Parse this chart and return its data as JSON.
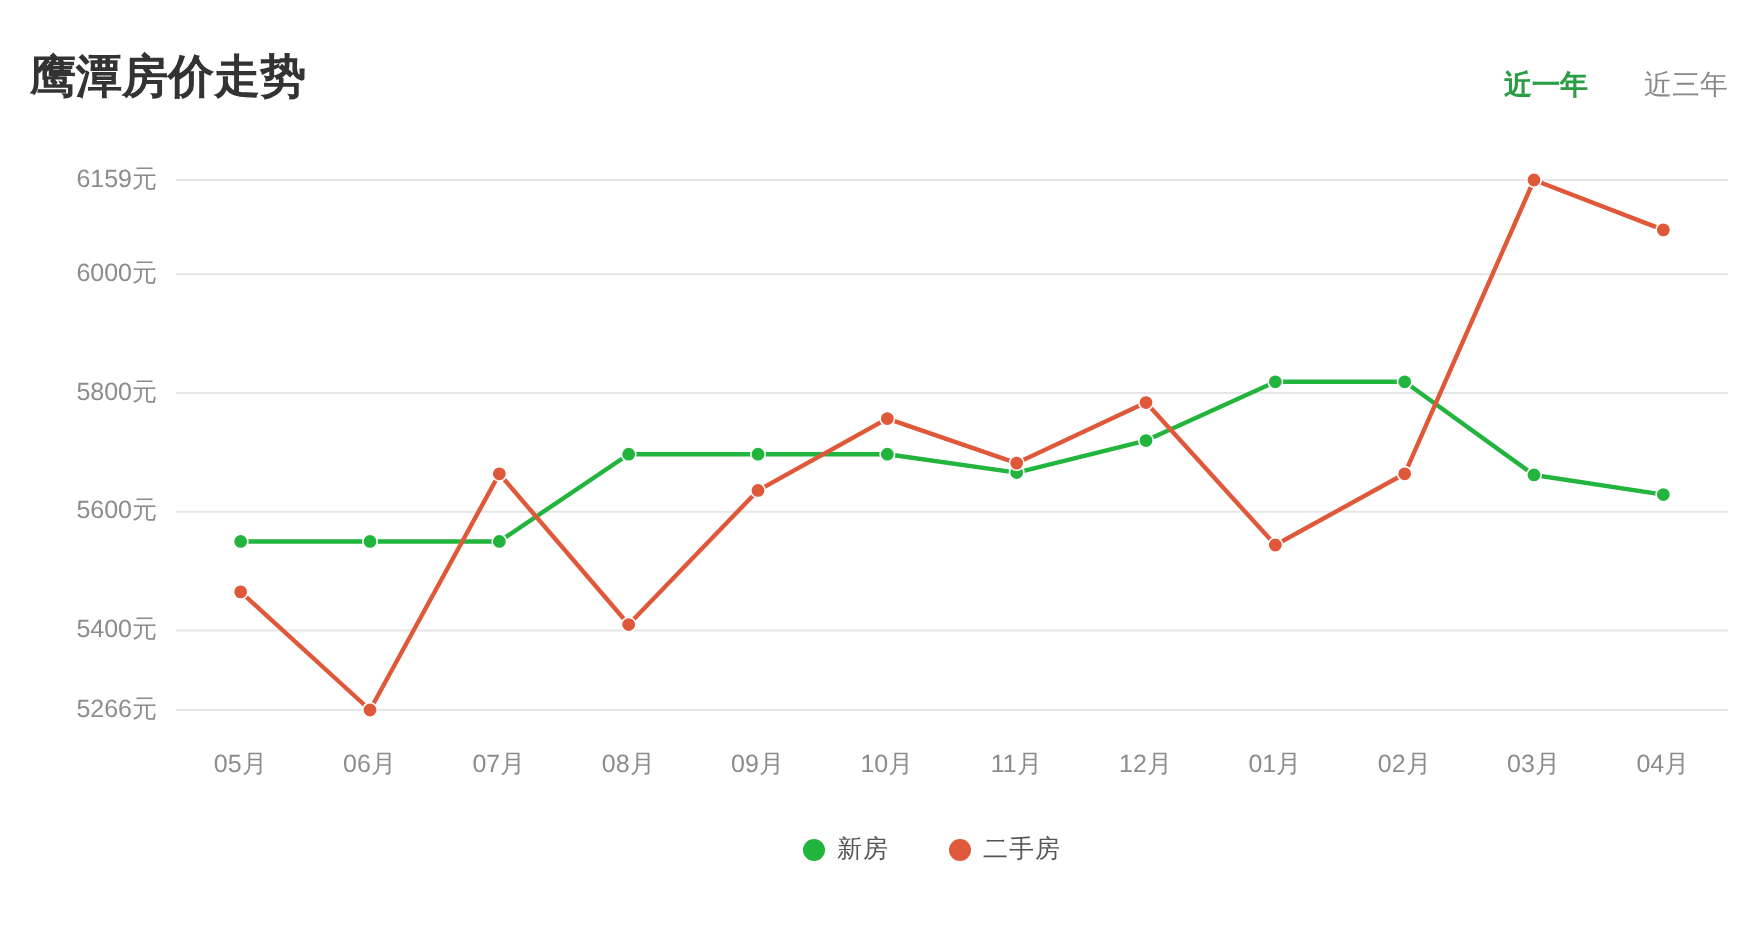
{
  "chart_data": {
    "type": "line",
    "title": "鹰潭房价走势",
    "annotations": [
      "近一年",
      "近三年"
    ],
    "categories": [
      "05月",
      "06月",
      "07月",
      "08月",
      "09月",
      "10月",
      "11月",
      "12月",
      "01月",
      "02月",
      "03月",
      "04月"
    ],
    "series": [
      {
        "name": "新房",
        "color": "#22b53e",
        "values": [
          5550,
          5550,
          5550,
          5697,
          5697,
          5697,
          5666,
          5720,
          5819,
          5819,
          5662,
          5629
        ]
      },
      {
        "name": "二手房",
        "color": "#e0583a",
        "values": [
          5465,
          5266,
          5664,
          5410,
          5636,
          5757,
          5682,
          5784,
          5544,
          5664,
          6159,
          6075
        ]
      }
    ],
    "ylim": [
      5266,
      6159
    ],
    "yticks": [
      {
        "value": 5266,
        "label": "5266元"
      },
      {
        "value": 5400,
        "label": "5400元"
      },
      {
        "value": 5600,
        "label": "5600元"
      },
      {
        "value": 5800,
        "label": "5800元"
      },
      {
        "value": 6000,
        "label": "6000元"
      },
      {
        "value": 6159,
        "label": "6159元"
      }
    ],
    "grid": "y",
    "legend": "bottom",
    "marker": "circle",
    "line_style": "solid"
  }
}
